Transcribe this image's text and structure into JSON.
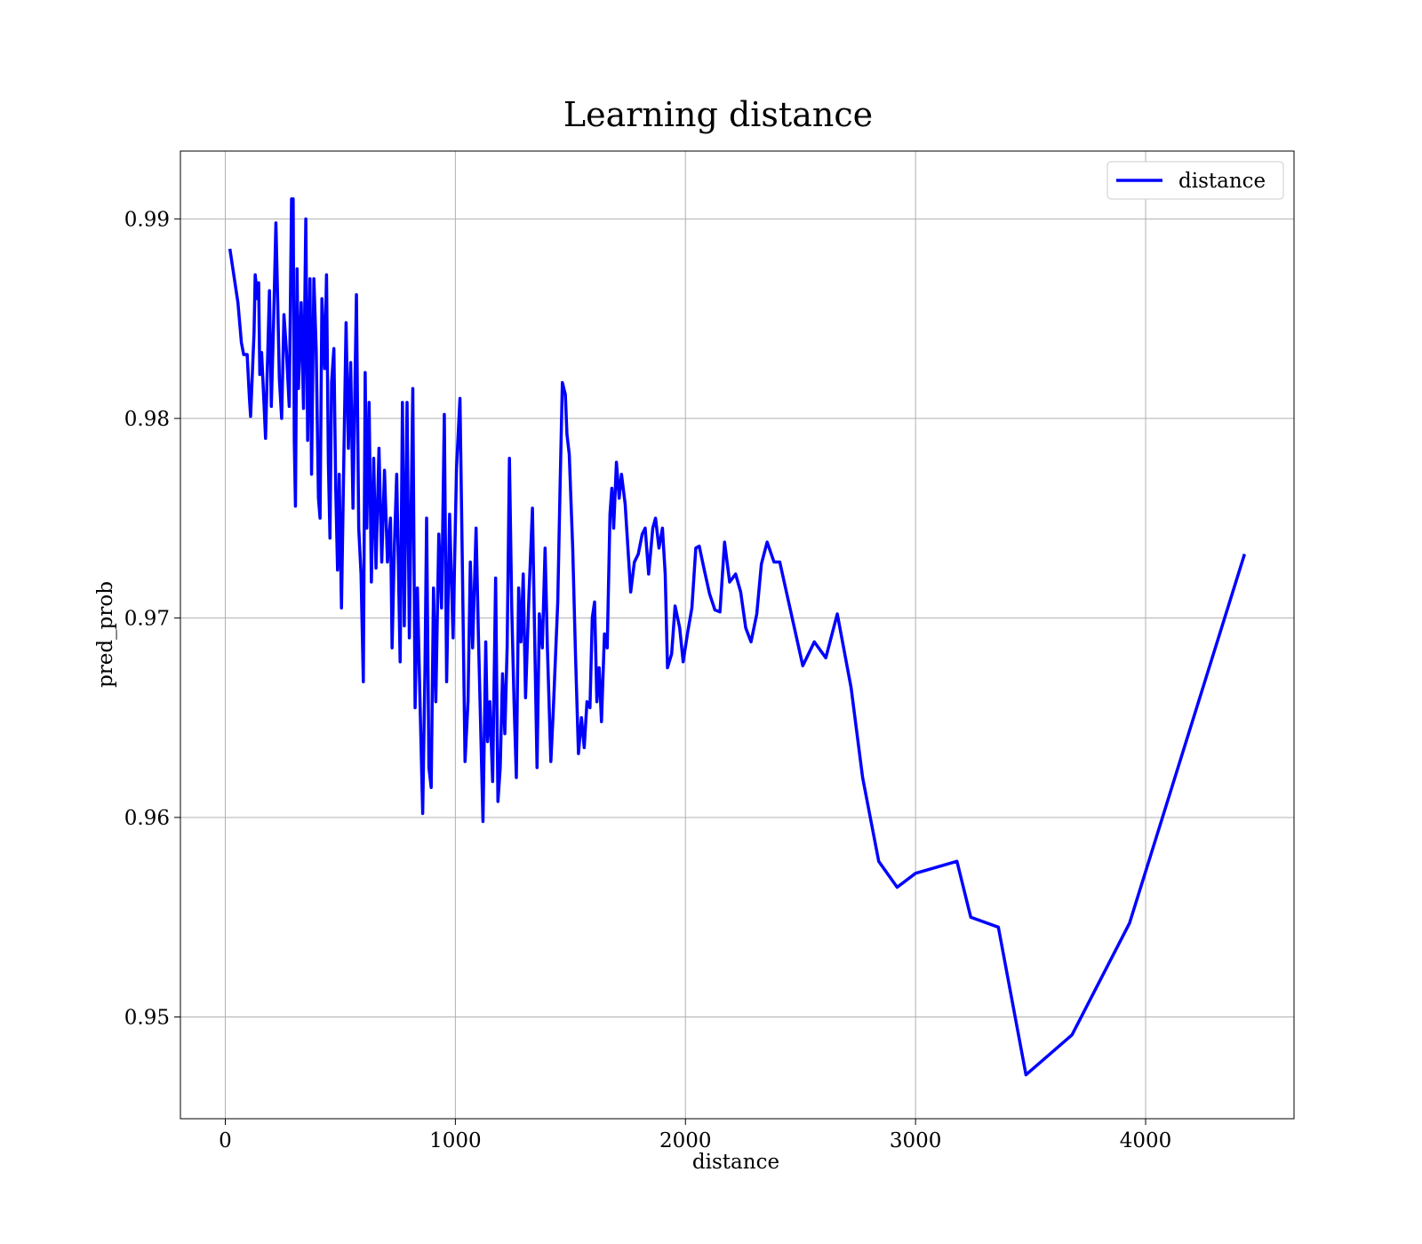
{
  "chart_data": {
    "type": "line",
    "title": "Learning distance",
    "x_label": "distance",
    "y_label": "pred_prob",
    "x": [
      20,
      55,
      70,
      80,
      95,
      105,
      110,
      125,
      130,
      140,
      145,
      150,
      158,
      168,
      175,
      182,
      192,
      200,
      210,
      220,
      228,
      235,
      245,
      255,
      265,
      278,
      288,
      295,
      300,
      305,
      312,
      318,
      330,
      340,
      350,
      358,
      368,
      375,
      385,
      395,
      405,
      412,
      420,
      432,
      440,
      448,
      455,
      462,
      472,
      480,
      488,
      495,
      505,
      515,
      525,
      535,
      545,
      555,
      570,
      580,
      590,
      600,
      608,
      615,
      625,
      635,
      645,
      655,
      668,
      680,
      692,
      705,
      718,
      725,
      735,
      745,
      760,
      770,
      778,
      790,
      800,
      815,
      825,
      835,
      848,
      858,
      868,
      875,
      885,
      895,
      905,
      915,
      928,
      940,
      952,
      962,
      975,
      990,
      1005,
      1020,
      1030,
      1042,
      1055,
      1065,
      1075,
      1090,
      1100,
      1120,
      1132,
      1140,
      1150,
      1162,
      1175,
      1185,
      1195,
      1205,
      1215,
      1225,
      1235,
      1245,
      1255,
      1265,
      1275,
      1285,
      1295,
      1305,
      1320,
      1335,
      1345,
      1355,
      1365,
      1378,
      1390,
      1400,
      1415,
      1425,
      1445,
      1455,
      1465,
      1478,
      1485,
      1495,
      1510,
      1522,
      1535,
      1548,
      1560,
      1572,
      1585,
      1595,
      1605,
      1615,
      1625,
      1635,
      1648,
      1660,
      1672,
      1680,
      1688,
      1700,
      1712,
      1722,
      1738,
      1750,
      1762,
      1778,
      1795,
      1812,
      1825,
      1840,
      1858,
      1870,
      1885,
      1900,
      1912,
      1922,
      1940,
      1955,
      1975,
      1990,
      2010,
      2028,
      2045,
      2060,
      2080,
      2105,
      2128,
      2150,
      2170,
      2192,
      2218,
      2240,
      2262,
      2285,
      2310,
      2330,
      2355,
      2385,
      2410,
      2460,
      2510,
      2560,
      2610,
      2660,
      2720,
      2770,
      2840,
      2920,
      3000,
      3180,
      3240,
      3360,
      3480,
      3680,
      3930,
      4430
    ],
    "series": [
      {
        "name": "distance",
        "color": "#0000ff",
        "values": [
          0.9885,
          0.9858,
          0.9838,
          0.9832,
          0.9832,
          0.981,
          0.9801,
          0.9843,
          0.9872,
          0.986,
          0.9868,
          0.9822,
          0.9833,
          0.9808,
          0.979,
          0.9822,
          0.9864,
          0.9806,
          0.9848,
          0.9898,
          0.9858,
          0.982,
          0.98,
          0.9852,
          0.9835,
          0.9806,
          0.991,
          0.991,
          0.9788,
          0.9756,
          0.9875,
          0.9815,
          0.9858,
          0.9805,
          0.99,
          0.9789,
          0.987,
          0.9772,
          0.987,
          0.9835,
          0.976,
          0.975,
          0.986,
          0.9825,
          0.9872,
          0.9778,
          0.974,
          0.9818,
          0.9835,
          0.9765,
          0.9724,
          0.9772,
          0.9705,
          0.9778,
          0.9848,
          0.9785,
          0.9828,
          0.9755,
          0.9862,
          0.9745,
          0.9722,
          0.9668,
          0.9823,
          0.9745,
          0.9808,
          0.9718,
          0.978,
          0.9725,
          0.9785,
          0.9728,
          0.9774,
          0.9728,
          0.975,
          0.9685,
          0.9736,
          0.9772,
          0.9678,
          0.9808,
          0.9696,
          0.9808,
          0.969,
          0.9815,
          0.9655,
          0.9715,
          0.965,
          0.9602,
          0.9675,
          0.975,
          0.9625,
          0.9615,
          0.9715,
          0.9658,
          0.9742,
          0.9705,
          0.9802,
          0.9668,
          0.9752,
          0.969,
          0.9775,
          0.981,
          0.973,
          0.9628,
          0.9658,
          0.9728,
          0.9685,
          0.9745,
          0.9692,
          0.9598,
          0.9688,
          0.9638,
          0.9658,
          0.9618,
          0.972,
          0.9608,
          0.9625,
          0.9672,
          0.9642,
          0.9685,
          0.978,
          0.9705,
          0.9658,
          0.962,
          0.9715,
          0.9688,
          0.9722,
          0.966,
          0.9712,
          0.9755,
          0.9688,
          0.9625,
          0.9702,
          0.9685,
          0.9735,
          0.9685,
          0.9628,
          0.9652,
          0.9708,
          0.9765,
          0.9818,
          0.9812,
          0.9792,
          0.9782,
          0.9735,
          0.9682,
          0.9632,
          0.965,
          0.9635,
          0.9658,
          0.9655,
          0.97,
          0.9708,
          0.9658,
          0.9675,
          0.9648,
          0.9692,
          0.9685,
          0.9752,
          0.9765,
          0.9745,
          0.9778,
          0.976,
          0.9772,
          0.9757,
          0.9735,
          0.9713,
          0.9728,
          0.9732,
          0.9742,
          0.9745,
          0.9722,
          0.9745,
          0.975,
          0.9735,
          0.9745,
          0.9722,
          0.9675,
          0.9682,
          0.9706,
          0.9695,
          0.9678,
          0.9693,
          0.9705,
          0.9735,
          0.9736,
          0.9725,
          0.9712,
          0.9704,
          0.9703,
          0.9738,
          0.9718,
          0.9722,
          0.9713,
          0.9695,
          0.9688,
          0.9702,
          0.9727,
          0.9738,
          0.9728,
          0.9728,
          0.9702,
          0.9676,
          0.9688,
          0.968,
          0.9702,
          0.9665,
          0.962,
          0.9578,
          0.9565,
          0.9572,
          0.9578,
          0.955,
          0.9545,
          0.9471,
          0.9491,
          0.9547,
          0.9732
        ]
      }
    ],
    "xlim": [
      -195,
      4645
    ],
    "ylim": [
      0.9449,
      0.9934
    ],
    "xticks": [
      0,
      1000,
      2000,
      3000,
      4000
    ],
    "yticks": [
      0.95,
      0.96,
      0.97,
      0.98,
      0.99
    ],
    "grid": true,
    "legend": "upper right"
  }
}
